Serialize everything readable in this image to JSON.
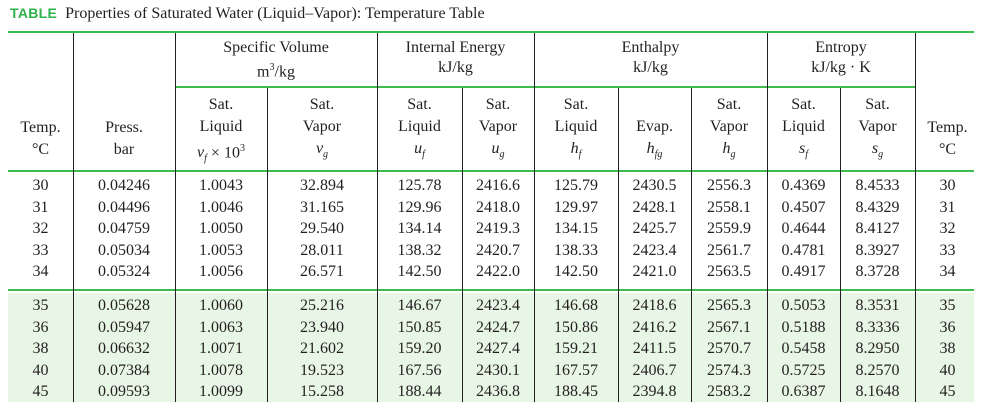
{
  "caption": {
    "tag": "TABLE",
    "title": "Properties of Saturated Water (Liquid–Vapor): Temperature Table"
  },
  "groups": {
    "specific_volume": {
      "name": "Specific Volume",
      "units_prefix": "m",
      "units_sup": "3",
      "units_suffix": "/kg"
    },
    "internal_energy": {
      "name": "Internal Energy",
      "units": "kJ/kg"
    },
    "enthalpy": {
      "name": "Enthalpy",
      "units": "kJ/kg"
    },
    "entropy": {
      "name": "Entropy",
      "units": "kJ/kg · K"
    }
  },
  "columns": {
    "temp_left": {
      "line1": "Temp.",
      "line2": "°C"
    },
    "press": {
      "line1": "Press.",
      "line2": "bar"
    },
    "vf": {
      "line1": "Sat.",
      "line2": "Liquid",
      "sym": "v",
      "sub": "f",
      "extra": " × 10",
      "extra_sup": "3"
    },
    "vg": {
      "line1": "Sat.",
      "line2": "Vapor",
      "sym": "v",
      "sub": "g"
    },
    "uf": {
      "line1": "Sat.",
      "line2": "Liquid",
      "sym": "u",
      "sub": "f"
    },
    "ug": {
      "line1": "Sat.",
      "line2": "Vapor",
      "sym": "u",
      "sub": "g"
    },
    "hf": {
      "line1": "Sat.",
      "line2": "Liquid",
      "sym": "h",
      "sub": "f"
    },
    "hfg": {
      "line1": "",
      "line2": "Evap.",
      "sym": "h",
      "sub": "fg"
    },
    "hg": {
      "line1": "Sat.",
      "line2": "Vapor",
      "sym": "h",
      "sub": "g"
    },
    "sf": {
      "line1": "Sat.",
      "line2": "Liquid",
      "sym": "s",
      "sub": "f"
    },
    "sg": {
      "line1": "Sat.",
      "line2": "Vapor",
      "sym": "s",
      "sub": "g"
    },
    "temp_right": {
      "line1": "Temp.",
      "line2": "°C"
    }
  },
  "rows": [
    [
      "30",
      "0.04246",
      "1.0043",
      "32.894",
      "125.78",
      "2416.6",
      "125.79",
      "2430.5",
      "2556.3",
      "0.4369",
      "8.4533",
      "30"
    ],
    [
      "31",
      "0.04496",
      "1.0046",
      "31.165",
      "129.96",
      "2418.0",
      "129.97",
      "2428.1",
      "2558.1",
      "0.4507",
      "8.4329",
      "31"
    ],
    [
      "32",
      "0.04759",
      "1.0050",
      "29.540",
      "134.14",
      "2419.3",
      "134.15",
      "2425.7",
      "2559.9",
      "0.4644",
      "8.4127",
      "32"
    ],
    [
      "33",
      "0.05034",
      "1.0053",
      "28.011",
      "138.32",
      "2420.7",
      "138.33",
      "2423.4",
      "2561.7",
      "0.4781",
      "8.3927",
      "33"
    ],
    [
      "34",
      "0.05324",
      "1.0056",
      "26.571",
      "142.50",
      "2422.0",
      "142.50",
      "2421.0",
      "2563.5",
      "0.4917",
      "8.3728",
      "34"
    ],
    [
      "35",
      "0.05628",
      "1.0060",
      "25.216",
      "146.67",
      "2423.4",
      "146.68",
      "2418.6",
      "2565.3",
      "0.5053",
      "8.3531",
      "35"
    ],
    [
      "36",
      "0.05947",
      "1.0063",
      "23.940",
      "150.85",
      "2424.7",
      "150.86",
      "2416.2",
      "2567.1",
      "0.5188",
      "8.3336",
      "36"
    ],
    [
      "38",
      "0.06632",
      "1.0071",
      "21.602",
      "159.20",
      "2427.4",
      "159.21",
      "2411.5",
      "2570.7",
      "0.5458",
      "8.2950",
      "38"
    ],
    [
      "40",
      "0.07384",
      "1.0078",
      "19.523",
      "167.56",
      "2430.1",
      "167.57",
      "2406.7",
      "2574.3",
      "0.5725",
      "8.2570",
      "40"
    ],
    [
      "45",
      "0.09593",
      "1.0099",
      "15.258",
      "188.44",
      "2436.8",
      "188.45",
      "2394.8",
      "2583.2",
      "0.6387",
      "8.1648",
      "45"
    ]
  ],
  "colors": {
    "accent": "#2fb24a",
    "rule": "#3dbb4f",
    "band": "#e8f6e6"
  }
}
